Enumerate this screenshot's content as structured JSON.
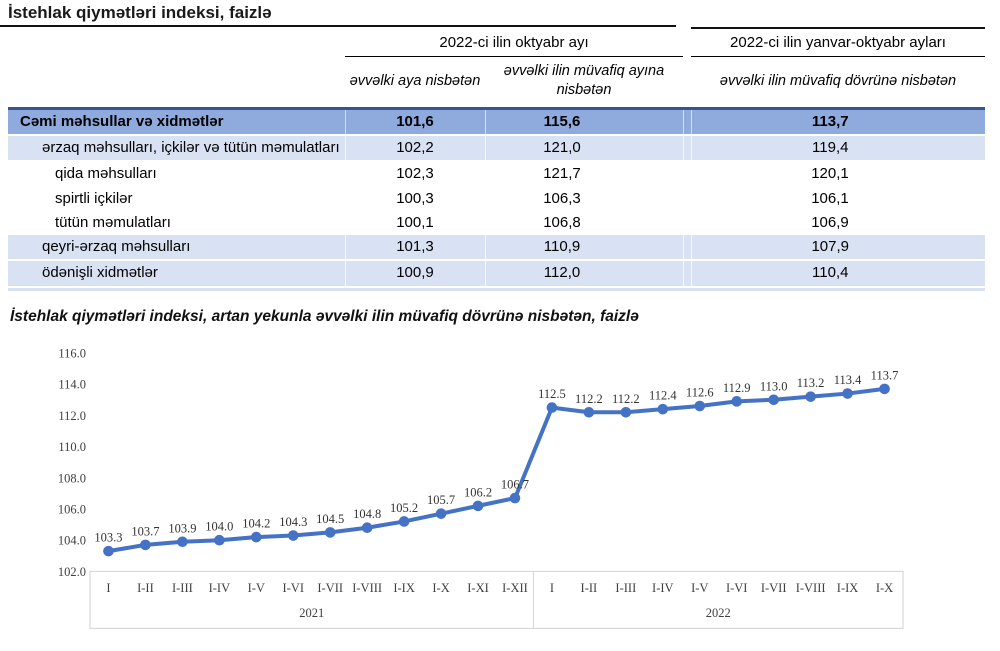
{
  "page": {
    "title": "İstehlak qiymətləri indeksi, faizlə"
  },
  "table": {
    "group_headers": [
      {
        "label": "2022-ci ilin oktyabr ayı"
      },
      {
        "label": "2022-ci ilin yanvar-oktyabr ayları"
      }
    ],
    "sub_headers": [
      "əvvəlki aya nisbətən",
      "əvvəlki ilin müvafiq ayına nisbətən",
      "əvvəlki ilin müvafiq dövrünə nisbətən"
    ],
    "rows": [
      {
        "label": "Cəmi məhsullar və xidmətlər",
        "values": [
          "101,6",
          "115,6",
          "113,7"
        ],
        "style": "total"
      },
      {
        "label": "ərzaq məhsulları, içkilər və tütün məmulatları",
        "values": [
          "102,2",
          "121,0",
          "119,4"
        ],
        "style": "group"
      },
      {
        "label": "qida məhsulları",
        "values": [
          "102,3",
          "121,7",
          "120,1"
        ],
        "style": "sub"
      },
      {
        "label": "spirtli içkilər",
        "values": [
          "100,3",
          "106,3",
          "106,1"
        ],
        "style": "sub"
      },
      {
        "label": "tütün məmulatları",
        "values": [
          "100,1",
          "106,8",
          "106,9"
        ],
        "style": "sub"
      },
      {
        "label": "qeyri-ərzaq məhsulları",
        "values": [
          "101,3",
          "110,9",
          "107,9"
        ],
        "style": "group"
      },
      {
        "label": "ödənişli xidmətlər",
        "values": [
          "100,9",
          "112,0",
          "110,4"
        ],
        "style": "group"
      }
    ]
  },
  "chart": {
    "title": "İstehlak qiymətləri indeksi, artan yekunla əvvəlki ilin müvafiq dövrünə nisbətən, faizlə"
  },
  "chart_data": {
    "type": "line",
    "title": "İstehlak qiymətləri indeksi, artan yekunla əvvəlki ilin müvafiq dövrünə nisbətən, faizlə",
    "categories": [
      "I",
      "I-II",
      "I-III",
      "I-IV",
      "I-V",
      "I-VI",
      "I-VII",
      "I-VIII",
      "I-IX",
      "I-X",
      "I-XI",
      "I-XII",
      "I",
      "I-II",
      "I-III",
      "I-IV",
      "I-V",
      "I-VI",
      "I-VII",
      "I-VIII",
      "I-IX",
      "I-X"
    ],
    "category_groups": [
      {
        "year": "2021",
        "count": 12
      },
      {
        "year": "2022",
        "count": 10
      }
    ],
    "series": [
      {
        "name": "İstehlak qiymətləri indeksi",
        "values": [
          103.3,
          103.7,
          103.9,
          104.0,
          104.2,
          104.3,
          104.5,
          104.8,
          105.2,
          105.7,
          106.2,
          106.7,
          112.5,
          112.2,
          112.2,
          112.4,
          112.6,
          112.9,
          113.0,
          113.2,
          113.4,
          113.7
        ]
      }
    ],
    "xlabel": "",
    "ylabel": "",
    "ylim": [
      102.0,
      116.0
    ],
    "ytick_step": 2.0,
    "grid": false,
    "legend": "none",
    "data_labels": true,
    "line_color": "#4472C4"
  },
  "colors": {
    "line": "#4472C4",
    "table_total_bg": "#8FAADC",
    "table_alt_bg": "#D9E2F3",
    "table_total_border": "#365591",
    "axis_box_border": "#D9D9D9",
    "axis_text": "#404040"
  }
}
